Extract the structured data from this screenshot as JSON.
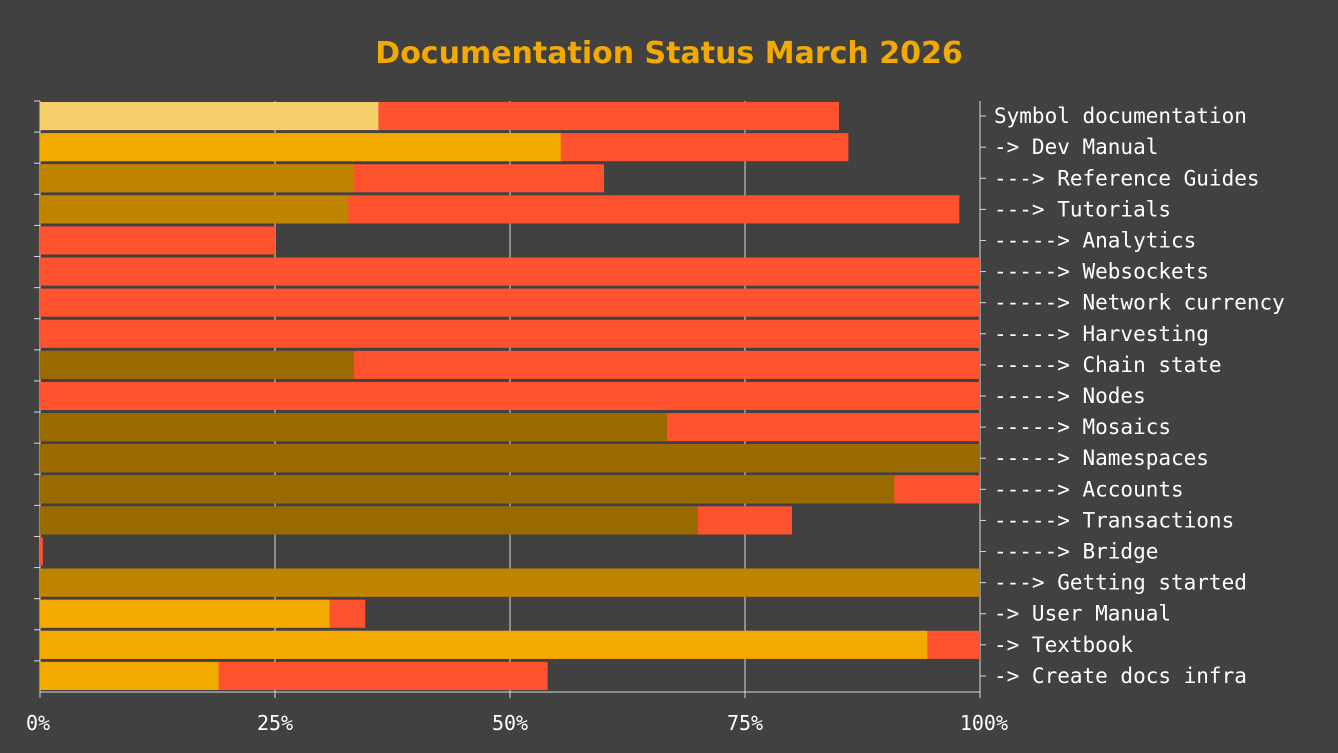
{
  "chart_data": {
    "type": "bar",
    "orientation": "horizontal",
    "stacked": "overlay",
    "title": "Documentation Status March 2026",
    "xlim": [
      0,
      100
    ],
    "xticks": [
      "0%",
      "25%",
      "50%",
      "75%",
      "100%"
    ],
    "grid": true,
    "categories": [
      "Symbol documentation",
      "-> Dev Manual",
      "---> Reference Guides",
      "---> Tutorials",
      "-----> Analytics",
      "-----> Websockets",
      "-----> Network currency",
      "-----> Harvesting",
      "-----> Chain state",
      "-----> Nodes",
      "-----> Mosaics",
      "-----> Namespaces",
      "-----> Accounts",
      "-----> Transactions",
      "-----> Bridge",
      "---> Getting started",
      "-> User Manual",
      "-> Textbook",
      "-> Create docs infra"
    ],
    "done": [
      36,
      55.4,
      33.4,
      32.8,
      0,
      0,
      0,
      0,
      33.4,
      0,
      66.7,
      100,
      90.9,
      70,
      0,
      100,
      30.8,
      94.4,
      19
    ],
    "total": [
      85,
      86,
      60,
      97.8,
      25,
      100,
      100,
      100,
      100,
      100,
      100,
      100,
      100,
      80,
      0.3,
      100,
      34.6,
      100,
      54
    ],
    "done_colors": [
      "#f5d06a",
      "#f2a900",
      "#bf8400",
      "#bf8400",
      "#996a00",
      "#996a00",
      "#996a00",
      "#996a00",
      "#996a00",
      "#996a00",
      "#996a00",
      "#996a00",
      "#996a00",
      "#996a00",
      "#996a00",
      "#bf8400",
      "#f2a900",
      "#f2a900",
      "#f2a900"
    ],
    "remaining_color": "#ff532f",
    "background": "#414141",
    "grid_color": "#d9d9d9",
    "title_color": "#f2a900"
  }
}
